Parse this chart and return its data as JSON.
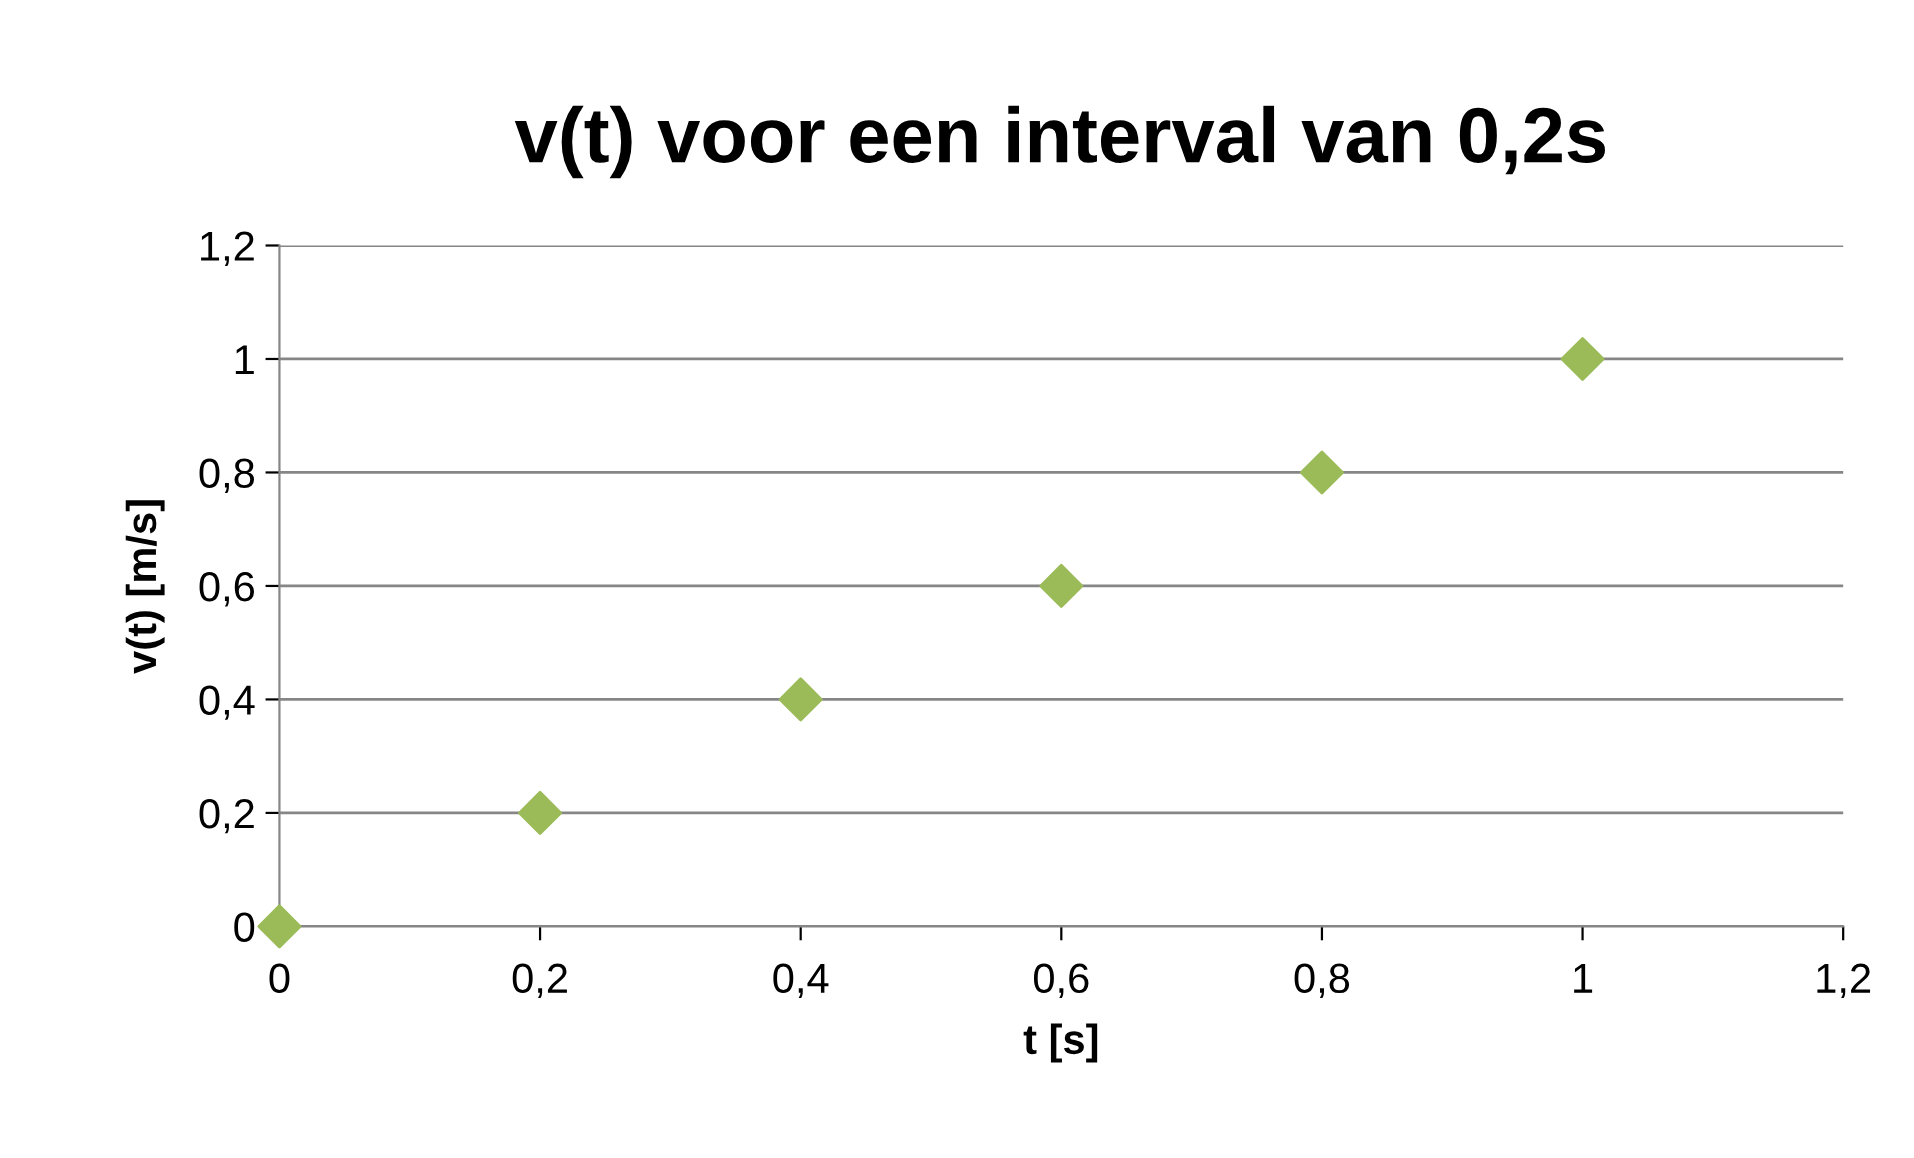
{
  "chart_data": {
    "type": "scatter",
    "title": "v(t) voor een interval van 0,2s",
    "xlabel": "t [s]",
    "ylabel": "v(t) [m/s]",
    "x": [
      0,
      0.2,
      0.4,
      0.6,
      0.8,
      1
    ],
    "series": [
      {
        "color": "#9bbb59",
        "values": [
          0,
          0.2,
          0.4,
          0.6,
          0.8,
          1
        ]
      }
    ],
    "xlim": [
      0,
      1.2
    ],
    "ylim": [
      0,
      1.2
    ],
    "xticks": [
      0,
      {
        "value": 0.2,
        "label": "0,2"
      },
      {
        "value": 0.4,
        "label": "0,4"
      },
      {
        "value": 0.6,
        "label": "0,6"
      },
      {
        "value": 0.8,
        "label": "0,8"
      },
      1,
      {
        "value": 1.2,
        "label": "1,2"
      }
    ],
    "yticks": [
      0,
      {
        "value": 0.2,
        "label": "0,2"
      },
      {
        "value": 0.4,
        "label": "0,4"
      },
      {
        "value": 0.6,
        "label": "0,6"
      },
      {
        "value": 0.8,
        "label": "0,8"
      },
      1,
      {
        "value": 1.2,
        "label": "1,2"
      }
    ],
    "grid": "y",
    "marker": "diamond"
  }
}
